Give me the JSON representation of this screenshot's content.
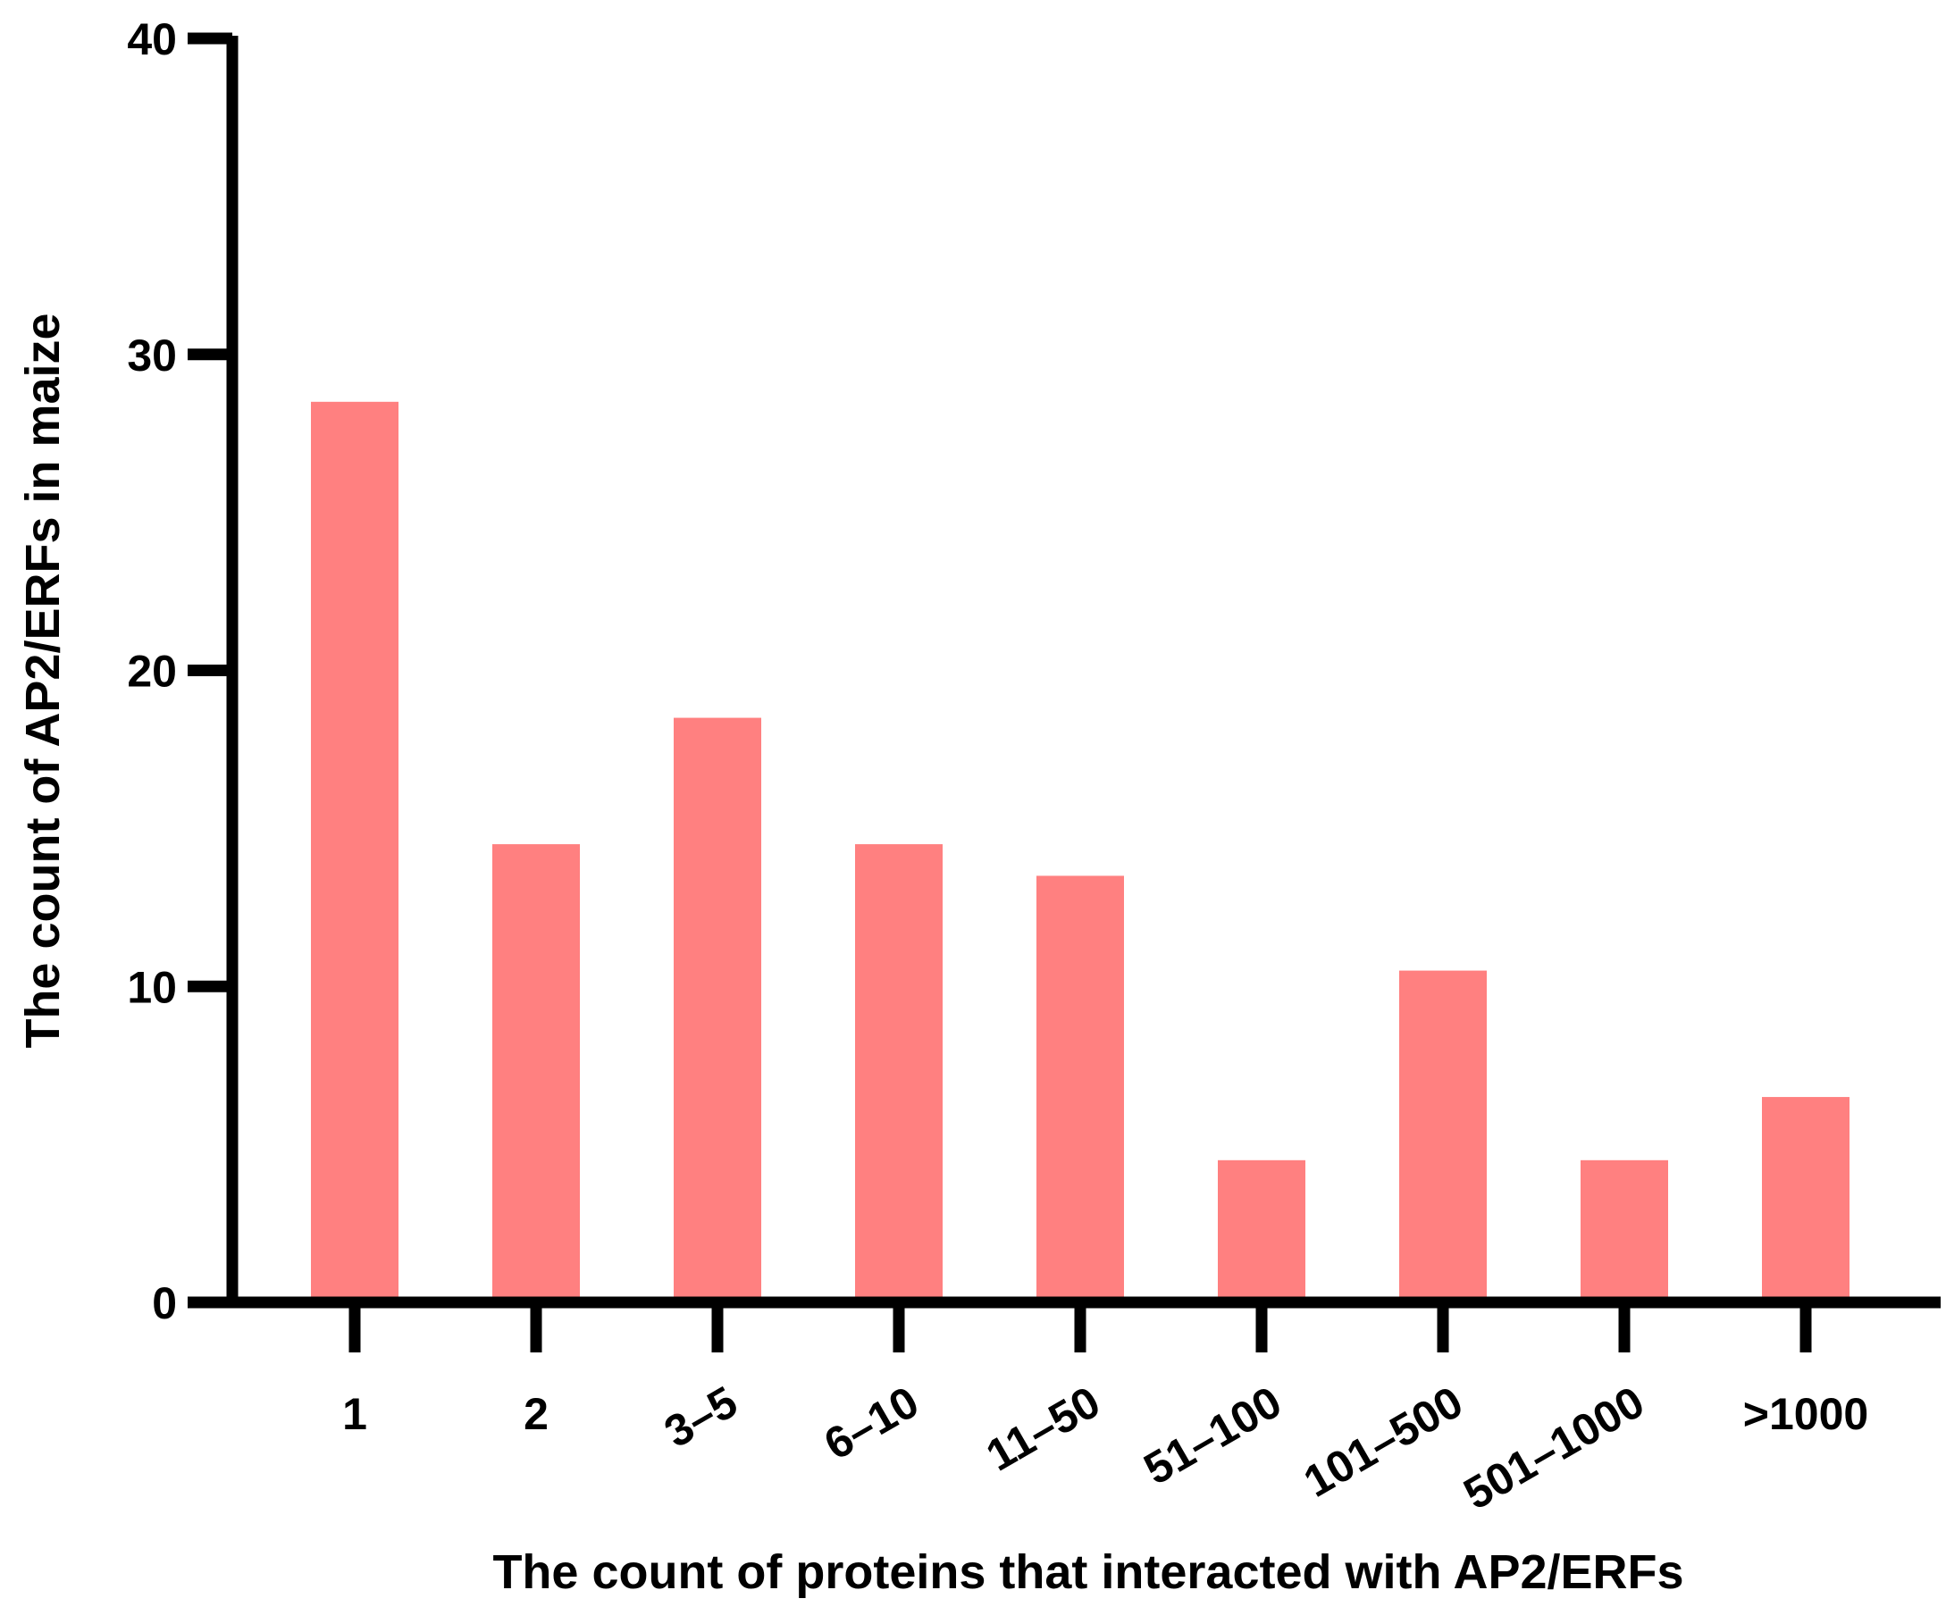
{
  "chart_data": {
    "type": "bar",
    "title": "",
    "xlabel": "The count of proteins that interacted  with AP2/ERFs",
    "ylabel": "The count of  AP2/ERFs in maize",
    "categories": [
      "1",
      "2",
      "3–5",
      "6–10",
      "11–50",
      "51–100",
      "101–500",
      "501–1000",
      ">1000"
    ],
    "values": [
      28.5,
      14.5,
      18.5,
      14.5,
      13.5,
      4.5,
      10.5,
      4.5,
      6.5
    ],
    "ylim": [
      0,
      40
    ],
    "yticks": [
      "0",
      "10",
      "20",
      "30",
      "40"
    ],
    "grid": false,
    "legend": "none",
    "bar_color": "#ff8080",
    "axis_color": "#000000"
  }
}
